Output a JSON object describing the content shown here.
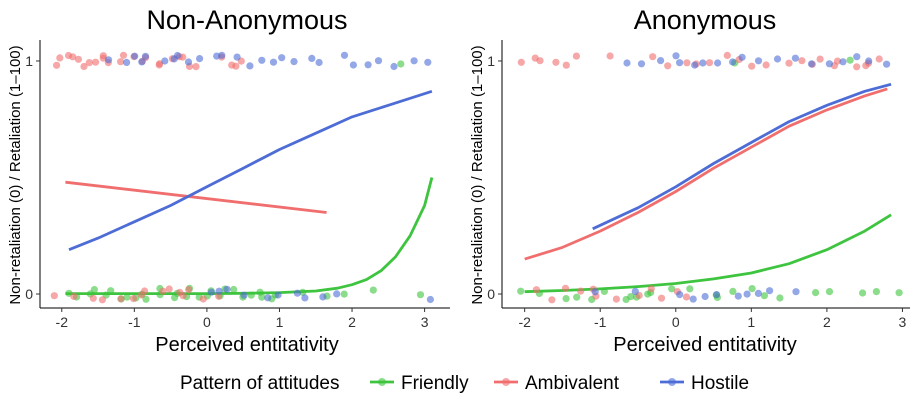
{
  "legend": {
    "title": "Pattern of attitudes",
    "position": "bottom",
    "items": [
      {
        "label": "Friendly",
        "color": "#3ec43e"
      },
      {
        "label": "Ambivalent",
        "color": "#f06e6e"
      },
      {
        "label": "Hostile",
        "color": "#4d6cd6"
      }
    ]
  },
  "chart_data": [
    {
      "type": "scatter",
      "title": "Non-Anonymous",
      "xlabel": "Perceived entitativity",
      "ylabel": "Non-retaliation (0) / Retaliation (1–100)",
      "xlim": [
        -2.3,
        3.35
      ],
      "ylim": [
        -0.06,
        1.09
      ],
      "x_ticks": [
        -2,
        -1,
        0,
        1,
        2,
        3
      ],
      "x_tick_labels": [
        "-2",
        "-1",
        "0",
        "1",
        "2",
        "3"
      ],
      "y_ticks": [
        0,
        1
      ],
      "y_tick_labels": [
        "0",
        "1"
      ],
      "grid": false,
      "series": [
        {
          "name": "Friendly",
          "color": "#3ec43e",
          "points": [
            {
              "y": 0,
              "x": [
                -1.9,
                -1.75,
                -1.6,
                -1.5,
                -1.4,
                -1.3,
                -1.2,
                -1.1,
                -1.0,
                -0.9,
                -0.8,
                -0.7,
                -0.6,
                -0.5,
                -0.4,
                -0.3,
                -0.2,
                -0.1,
                0.0,
                0.1,
                0.2,
                0.3,
                0.4,
                0.5,
                0.6,
                0.7,
                0.8,
                0.9,
                1.0,
                1.3,
                1.6,
                1.9,
                2.3,
                2.95
              ]
            },
            {
              "y": 1,
              "x": [
                2.7
              ]
            }
          ],
          "fit": {
            "x": [
              -1.95,
              -1.0,
              0.0,
              0.5,
              1.0,
              1.5,
              1.8,
              2.0,
              2.2,
              2.4,
              2.6,
              2.8,
              3.0,
              3.1
            ],
            "y": [
              0.002,
              0.002,
              0.002,
              0.003,
              0.006,
              0.013,
              0.025,
              0.04,
              0.062,
              0.1,
              0.16,
              0.25,
              0.38,
              0.5
            ]
          }
        },
        {
          "name": "Ambivalent",
          "color": "#f06e6e",
          "points": [
            {
              "y": 1,
              "x": [
                -2.1,
                -2.0,
                -1.95,
                -1.9,
                -1.8,
                -1.7,
                -1.6,
                -1.5,
                -1.45,
                -1.4,
                -1.3,
                -1.2,
                -1.1,
                -1.0,
                -0.9,
                -0.8,
                -0.7,
                -0.6,
                -0.5,
                -0.4,
                -0.3,
                -0.2,
                -0.1,
                0.2,
                0.3,
                0.4,
                0.5
              ]
            },
            {
              "y": 0,
              "x": [
                -2.05,
                -1.8,
                -1.6,
                -1.4,
                -1.2,
                -1.0,
                -0.9,
                -0.8,
                -0.6,
                -0.5,
                -0.4,
                -0.3,
                -0.2,
                0.0,
                0.2
              ]
            }
          ],
          "fit": {
            "x": [
              -1.95,
              1.65
            ],
            "y": [
              0.48,
              0.35
            ]
          }
        },
        {
          "name": "Hostile",
          "color": "#4d6cd6",
          "points": [
            {
              "y": 1,
              "x": [
                -1.3,
                -1.1,
                -1.0,
                -0.9,
                -0.8,
                -0.6,
                -0.5,
                -0.4,
                -0.3,
                -0.1,
                0.1,
                0.2,
                0.4,
                0.6,
                0.7,
                0.9,
                1.0,
                1.2,
                1.4,
                1.6,
                1.9,
                2.0,
                2.2,
                2.4,
                2.6,
                2.8,
                3.1
              ]
            },
            {
              "y": 0,
              "x": [
                0.1,
                0.2,
                0.3,
                0.5,
                0.8,
                1.0,
                1.2,
                1.4,
                1.6,
                1.8,
                3.1
              ]
            }
          ],
          "fit": {
            "x": [
              -1.9,
              -1.5,
              -1.0,
              -0.5,
              0.0,
              0.5,
              1.0,
              1.5,
              2.0,
              2.5,
              3.1
            ],
            "y": [
              0.19,
              0.24,
              0.31,
              0.38,
              0.46,
              0.54,
              0.62,
              0.69,
              0.76,
              0.81,
              0.87
            ]
          }
        }
      ]
    },
    {
      "type": "scatter",
      "title": "Anonymous",
      "xlabel": "Perceived entitativity",
      "ylabel": "Non-retaliation (0) / Retaliation (1–100)",
      "xlim": [
        -2.3,
        3.1
      ],
      "ylim": [
        -0.06,
        1.09
      ],
      "x_ticks": [
        -2,
        -1,
        0,
        1,
        2,
        3
      ],
      "x_tick_labels": [
        "-2",
        "-1",
        "0",
        "1",
        "2",
        "3"
      ],
      "y_ticks": [
        0,
        1
      ],
      "y_tick_labels": [
        "0",
        "1"
      ],
      "grid": false,
      "series": [
        {
          "name": "Friendly",
          "color": "#3ec43e",
          "points": [
            {
              "y": 0,
              "x": [
                -2.0,
                -1.8,
                -1.5,
                -1.3,
                -1.1,
                -0.9,
                -0.7,
                -0.6,
                -0.5,
                -0.4,
                -0.3,
                -0.1,
                0.2,
                0.5,
                0.6,
                0.8,
                1.0,
                1.2,
                1.4,
                1.8,
                2.0,
                2.5,
                2.7,
                2.9
              ]
            },
            {
              "y": 1,
              "x": [
                0.8,
                2.3
              ]
            }
          ],
          "fit": {
            "x": [
              -2.0,
              -1.5,
              -1.0,
              -0.5,
              0.0,
              0.5,
              1.0,
              1.5,
              2.0,
              2.5,
              2.85
            ],
            "y": [
              0.01,
              0.015,
              0.022,
              0.032,
              0.045,
              0.065,
              0.09,
              0.13,
              0.19,
              0.27,
              0.34
            ]
          }
        },
        {
          "name": "Ambivalent",
          "color": "#f06e6e",
          "points": [
            {
              "y": 1,
              "x": [
                -2.0,
                -1.9,
                -1.8,
                -1.6,
                -1.4,
                -1.3,
                -0.9,
                -0.3,
                -0.1,
                0.1,
                0.3,
                0.5,
                0.7,
                0.8,
                1.0,
                1.2,
                1.5,
                1.7,
                1.8,
                1.9,
                2.1,
                2.2,
                2.4,
                2.5,
                2.6,
                2.7
              ]
            },
            {
              "y": 0,
              "x": [
                -1.9,
                -1.6,
                -1.5,
                -1.3,
                -1.1,
                -1.0,
                -0.8,
                -0.5,
                -0.3,
                -0.2,
                0.0,
                0.2
              ]
            }
          ],
          "fit": {
            "x": [
              -2.0,
              -1.5,
              -1.0,
              -0.5,
              0.0,
              0.5,
              1.0,
              1.5,
              2.0,
              2.5,
              2.8
            ],
            "y": [
              0.15,
              0.2,
              0.27,
              0.35,
              0.44,
              0.54,
              0.63,
              0.72,
              0.79,
              0.85,
              0.88
            ]
          }
        },
        {
          "name": "Hostile",
          "color": "#4d6cd6",
          "points": [
            {
              "y": 1,
              "x": [
                -0.6,
                -0.4,
                -0.2,
                0.0,
                0.1,
                0.3,
                0.4,
                0.6,
                0.8,
                0.9,
                1.1,
                1.3,
                1.6,
                1.8,
                2.0,
                2.2,
                2.4,
                2.6,
                2.8
              ]
            },
            {
              "y": 0,
              "x": [
                -1.1,
                -0.5,
                0.1,
                0.2,
                0.4,
                0.6,
                0.8,
                1.0,
                1.1,
                1.3,
                1.6
              ]
            }
          ],
          "fit": {
            "x": [
              -1.1,
              -0.5,
              0.0,
              0.5,
              1.0,
              1.5,
              2.0,
              2.5,
              2.85
            ],
            "y": [
              0.28,
              0.37,
              0.46,
              0.56,
              0.65,
              0.74,
              0.81,
              0.87,
              0.9
            ]
          }
        }
      ]
    }
  ]
}
